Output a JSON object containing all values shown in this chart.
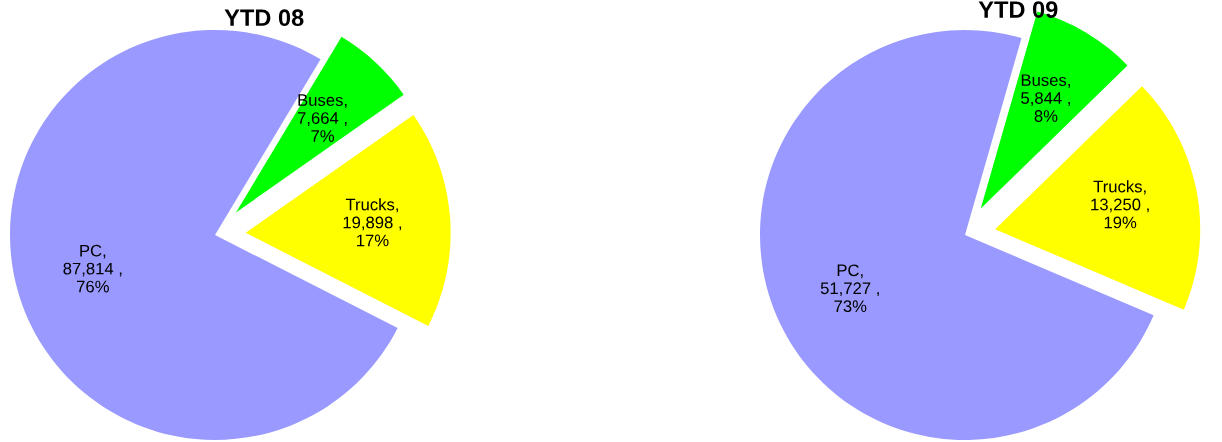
{
  "chart_data": [
    {
      "type": "pie",
      "title": "YTD 08",
      "categories": [
        "Buses",
        "Trucks",
        "PC"
      ],
      "values": [
        7664,
        19898,
        87814
      ],
      "value_labels": [
        ",\n7,664 ,\n7%",
        ",\n19,898 ,\n17%",
        ",\n87,814 ,\n76%"
      ],
      "colors": [
        "#00ff00",
        "#ffff00",
        "#9999ff"
      ]
    },
    {
      "type": "pie",
      "title": "YTD 09",
      "categories": [
        "Buses",
        "Trucks",
        "PC"
      ],
      "values": [
        5844,
        13250,
        51727
      ],
      "value_labels": [
        ",\n5,844 ,\n8%",
        ",\n13,250 ,\n19%",
        ",\n51,727 ,\n73%"
      ],
      "colors": [
        "#00ff00",
        "#ffff00",
        "#9999ff"
      ]
    }
  ]
}
